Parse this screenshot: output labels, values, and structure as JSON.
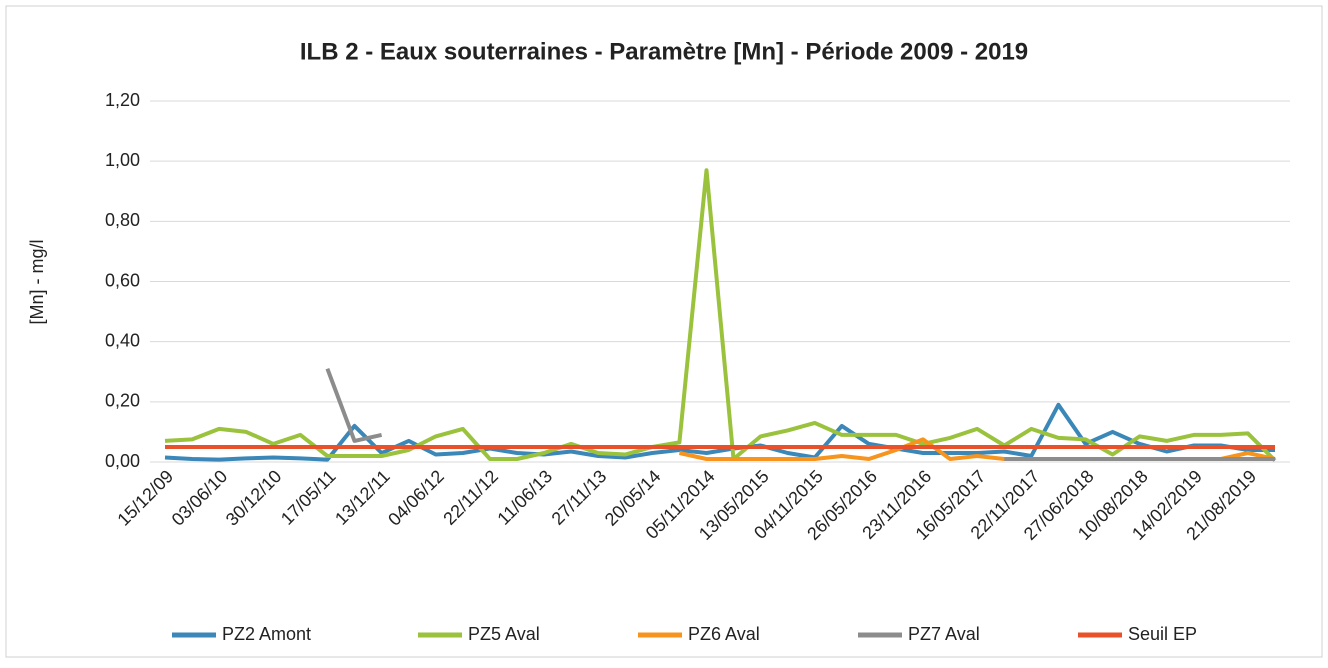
{
  "chart_data": {
    "type": "line",
    "title": "ILB 2 - Eaux souterraines - Paramètre [Mn] - Période 2009 - 2019",
    "y_label": "[Mn] - mg/l",
    "categories": [
      "15/12/09",
      null,
      "03/06/10",
      null,
      "30/12/10",
      null,
      "17/05/11",
      null,
      "13/12/11",
      null,
      "04/06/12",
      null,
      "22/11/12",
      null,
      "11/06/13",
      null,
      "27/11/13",
      null,
      "20/05/14",
      null,
      "05/11/2014",
      null,
      "13/05/2015",
      null,
      "04/11/2015",
      null,
      "26/05/2016",
      null,
      "23/11/2016",
      null,
      "16/05/2017",
      null,
      "22/11/2017",
      null,
      "27/06/2018",
      null,
      "10/08/2018",
      null,
      "14/02/2019",
      null,
      "21/08/2019",
      null
    ],
    "series": [
      {
        "name": "PZ2 Amont",
        "color": "#3a87b8",
        "values": [
          0.015,
          0.01,
          0.008,
          0.012,
          0.015,
          0.012,
          0.008,
          0.12,
          0.03,
          0.07,
          0.025,
          0.03,
          0.045,
          0.03,
          0.025,
          0.035,
          0.02,
          0.015,
          0.03,
          0.04,
          0.03,
          0.045,
          0.055,
          0.03,
          0.015,
          0.12,
          0.06,
          0.045,
          0.03,
          0.03,
          0.03,
          0.035,
          0.02,
          0.19,
          0.06,
          0.1,
          0.06,
          0.035,
          0.055,
          0.055,
          0.04,
          0.04
        ]
      },
      {
        "name": "PZ5 Aval",
        "color": "#9ac23c",
        "values": [
          0.07,
          0.075,
          0.11,
          0.1,
          0.06,
          0.09,
          0.02,
          0.02,
          0.02,
          0.04,
          0.085,
          0.11,
          0.01,
          0.01,
          0.03,
          0.06,
          0.03,
          0.025,
          0.05,
          0.065,
          0.97,
          0.01,
          0.085,
          0.105,
          0.13,
          0.09,
          0.09,
          0.09,
          0.06,
          0.08,
          0.11,
          0.055,
          0.11,
          0.08,
          0.075,
          0.025,
          0.085,
          0.07,
          0.09,
          0.09,
          0.095,
          0.005
        ]
      },
      {
        "name": "PZ6 Aval",
        "color": "#f7941d",
        "values": [
          null,
          null,
          null,
          null,
          null,
          null,
          null,
          null,
          null,
          null,
          null,
          null,
          null,
          null,
          null,
          null,
          null,
          null,
          null,
          0.03,
          0.01,
          0.01,
          0.01,
          0.01,
          0.01,
          0.02,
          0.01,
          0.04,
          0.075,
          0.01,
          0.02,
          0.01,
          0.01,
          0.01,
          0.01,
          0.01,
          0.01,
          0.01,
          0.01,
          0.01,
          0.03,
          0.01
        ]
      },
      {
        "name": "PZ7 Aval",
        "color": "#8c8c8c",
        "values": [
          null,
          null,
          null,
          null,
          null,
          null,
          0.31,
          0.07,
          0.09,
          null,
          null,
          null,
          null,
          null,
          null,
          null,
          null,
          null,
          null,
          null,
          null,
          null,
          null,
          null,
          null,
          null,
          null,
          null,
          null,
          null,
          null,
          0.01,
          0.01,
          0.01,
          0.01,
          0.01,
          0.01,
          0.01,
          0.01,
          0.01,
          0.01,
          0.01
        ]
      },
      {
        "name": "Seuil EP",
        "color": "#e8512a",
        "values": [
          0.05,
          0.05,
          0.05,
          0.05,
          0.05,
          0.05,
          0.05,
          0.05,
          0.05,
          0.05,
          0.05,
          0.05,
          0.05,
          0.05,
          0.05,
          0.05,
          0.05,
          0.05,
          0.05,
          0.05,
          0.05,
          0.05,
          0.05,
          0.05,
          0.05,
          0.05,
          0.05,
          0.05,
          0.05,
          0.05,
          0.05,
          0.05,
          0.05,
          0.05,
          0.05,
          0.05,
          0.05,
          0.05,
          0.05,
          0.05,
          0.05,
          0.05
        ]
      }
    ],
    "ylim": [
      0,
      1.2
    ],
    "yticks": [
      {
        "value": 0,
        "label": "0,00"
      },
      {
        "value": 0.2,
        "label": "0,20"
      },
      {
        "value": 0.4,
        "label": "0,40"
      },
      {
        "value": 0.6,
        "label": "0,60"
      },
      {
        "value": 0.8,
        "label": "0,80"
      },
      {
        "value": 1,
        "label": "1,00"
      },
      {
        "value": 1.2,
        "label": "1,20"
      }
    ],
    "grid": true,
    "legend": "bottom"
  }
}
